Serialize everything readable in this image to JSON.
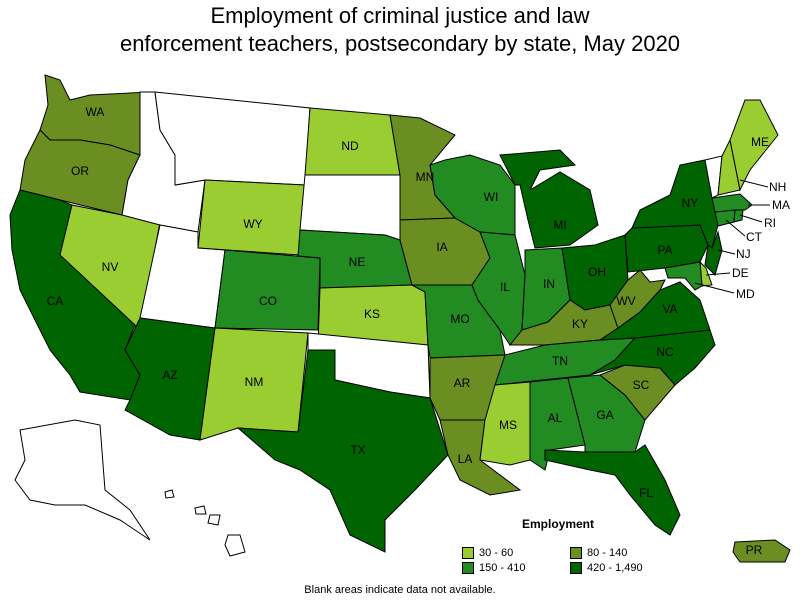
{
  "title_line1": "Employment of criminal justice and law",
  "title_line2": "enforcement teachers, postsecondary by state, May 2020",
  "colors": {
    "c1": "#9acd32",
    "c2": "#6b8e23",
    "c3": "#228b22",
    "c4": "#006400",
    "none": "#ffffff"
  },
  "legend": {
    "title": "Employment",
    "items": [
      {
        "label": "30 - 60",
        "color": "#9acd32"
      },
      {
        "label": "80 - 140",
        "color": "#6b8e23"
      },
      {
        "label": "150 - 410",
        "color": "#228b22"
      },
      {
        "label": "420 - 1,490",
        "color": "#006400"
      }
    ]
  },
  "states": {
    "WA": "c2",
    "OR": "c2",
    "CA": "c4",
    "NV": "c1",
    "ID": "none",
    "MT": "none",
    "WY": "c1",
    "UT": "none",
    "AZ": "c4",
    "CO": "c3",
    "NM": "c1",
    "ND": "c1",
    "SD": "none",
    "NE": "c3",
    "KS": "c1",
    "OK": "none",
    "TX": "c4",
    "MN": "c2",
    "IA": "c2",
    "MO": "c3",
    "AR": "c2",
    "LA": "c2",
    "WI": "c3",
    "IL": "c3",
    "MI": "c4",
    "IN": "c3",
    "OH": "c4",
    "KY": "c2",
    "TN": "c3",
    "MS": "c1",
    "AL": "c3",
    "GA": "c3",
    "FL": "c4",
    "SC": "c2",
    "NC": "c4",
    "VA": "c4",
    "WV": "c2",
    "PA": "c4",
    "NY": "c4",
    "VT": "none",
    "NH": "c1",
    "ME": "c1",
    "MA": "c3",
    "CT": "c3",
    "RI": "c3",
    "NJ": "c4",
    "DE": "c1",
    "MD": "c3",
    "AK": "none",
    "HI": "none",
    "PR": "c2"
  },
  "labels": {
    "WA": "WA",
    "OR": "OR",
    "CA": "CA",
    "NV": "NV",
    "WY": "WY",
    "AZ": "AZ",
    "CO": "CO",
    "NM": "NM",
    "ND": "ND",
    "NE": "NE",
    "KS": "KS",
    "TX": "TX",
    "MN": "MN",
    "IA": "IA",
    "MO": "MO",
    "AR": "AR",
    "LA": "LA",
    "WI": "WI",
    "IL": "IL",
    "MI": "MI",
    "IN": "IN",
    "OH": "OH",
    "KY": "KY",
    "TN": "TN",
    "MS": "MS",
    "AL": "AL",
    "GA": "GA",
    "FL": "FL",
    "SC": "SC",
    "NC": "NC",
    "VA": "VA",
    "WV": "WV",
    "PA": "PA",
    "NY": "NY",
    "ME": "ME",
    "PR": "PR",
    "NH": "NH",
    "MA": "MA",
    "RI": "RI",
    "CT": "CT",
    "NJ": "NJ",
    "DE": "DE",
    "MD": "MD"
  },
  "footnote": "Blank areas indicate data not available."
}
